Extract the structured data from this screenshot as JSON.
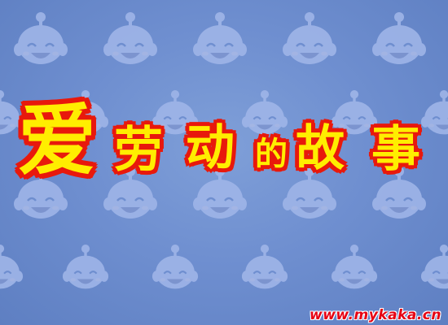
{
  "title": {
    "chars": [
      "爱",
      "劳",
      "动",
      "的",
      "故",
      "事"
    ]
  },
  "watermark": {
    "url": "www.mykaka.cn"
  },
  "background": {
    "pattern_icon": "smiling-baby-face-icon",
    "base_color": "#6f8fd0",
    "pattern_color": "#9fb5e8"
  },
  "colors": {
    "title_fill": "#ffee00",
    "title_outline": "#e8190c",
    "url_color": "#e60012"
  }
}
